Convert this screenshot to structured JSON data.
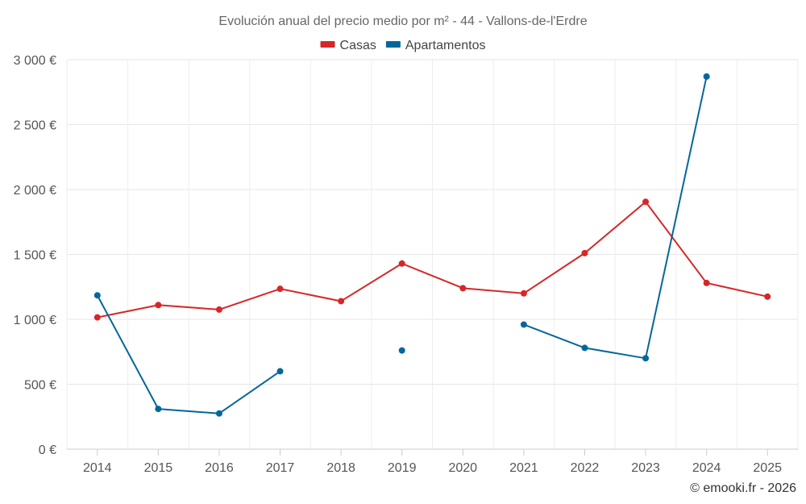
{
  "chart_data": {
    "type": "line",
    "title": "Evolución anual del precio medio por m² - 44 - Vallons-de-l'Erdre",
    "categories": [
      "2014",
      "2015",
      "2016",
      "2017",
      "2018",
      "2019",
      "2020",
      "2021",
      "2022",
      "2023",
      "2024",
      "2025"
    ],
    "series": [
      {
        "name": "Casas",
        "color": "#d62728",
        "values": [
          1015,
          1110,
          1075,
          1235,
          1140,
          1430,
          1240,
          1200,
          1510,
          1905,
          1280,
          1175
        ]
      },
      {
        "name": "Apartamentos",
        "color": "#04679b",
        "values": [
          1185,
          310,
          275,
          600,
          null,
          760,
          null,
          960,
          780,
          700,
          2870,
          null
        ]
      }
    ],
    "ylim": [
      0,
      3000
    ],
    "yticks": [
      0,
      500,
      1000,
      1500,
      2000,
      2500,
      3000
    ],
    "ytick_labels": [
      "0 €",
      "500 €",
      "1 000 €",
      "1 500 €",
      "2 000 €",
      "2 500 €",
      "3 000 €"
    ],
    "xlabel": "",
    "ylabel": "",
    "grid": true,
    "legend_position": "top-center"
  },
  "credit": "© emooki.fr - 2026"
}
